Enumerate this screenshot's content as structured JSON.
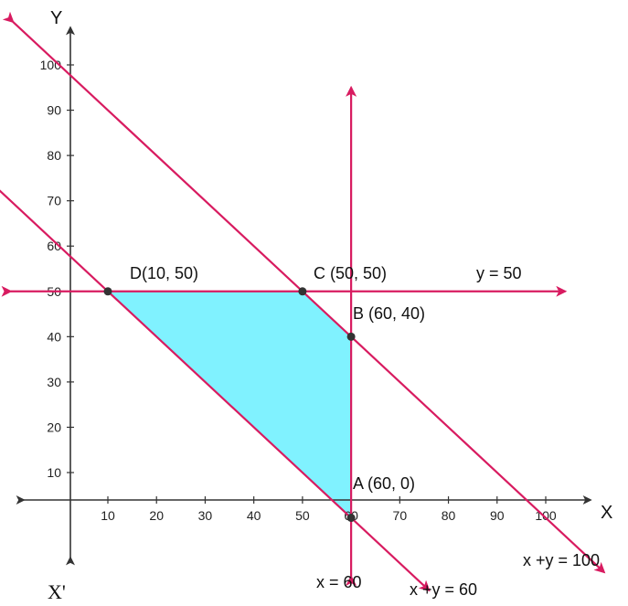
{
  "colors": {
    "constraint_line": "#d81b60",
    "axis": "#333333",
    "region_fill": "#80f2ff",
    "point": "#333333"
  },
  "axis_labels": {
    "x": "X",
    "y": "Y",
    "x_prime": "X'"
  },
  "chart_data": {
    "type": "line",
    "title": "",
    "xlabel": "X",
    "ylabel": "Y",
    "xlim": [
      0,
      110
    ],
    "ylim": [
      0,
      105
    ],
    "x_ticks": [
      10,
      20,
      30,
      40,
      50,
      60,
      70,
      80,
      90,
      100
    ],
    "y_ticks": [
      10,
      20,
      30,
      40,
      50,
      60,
      70,
      80,
      90,
      100
    ],
    "grid": false,
    "lines": [
      {
        "name": "x +y = 100",
        "equation": "x + y = 100"
      },
      {
        "name": "x +y = 60",
        "equation": "x + y = 60"
      },
      {
        "name": "x = 60",
        "equation": "x = 60"
      },
      {
        "name": "y = 50",
        "equation": "y = 50"
      }
    ],
    "feasible_region": {
      "vertices": [
        [
          10,
          50
        ],
        [
          50,
          50
        ],
        [
          60,
          40
        ],
        [
          60,
          0
        ]
      ],
      "fill": "cyan"
    },
    "points": [
      {
        "label": "A (60, 0)",
        "x": 60,
        "y": 0
      },
      {
        "label": "B (60, 40)",
        "x": 60,
        "y": 40
      },
      {
        "label": "C (50, 50)",
        "x": 50,
        "y": 50
      },
      {
        "label": "D(10, 50)",
        "x": 10,
        "y": 50
      }
    ]
  }
}
